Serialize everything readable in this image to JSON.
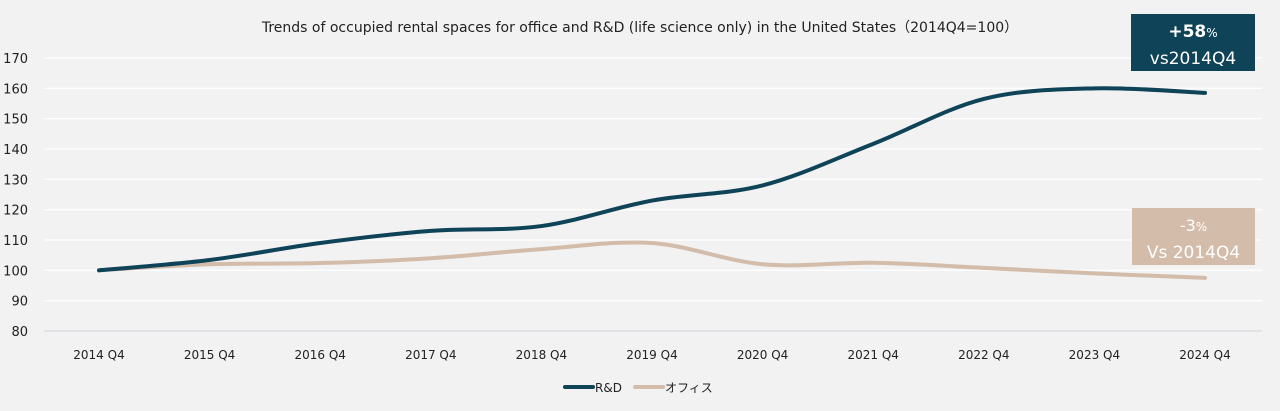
{
  "chart_data": {
    "type": "line",
    "title": "Trends of occupied rental spaces for office and R&D (life science only) in the United States（2014Q4=100）",
    "categories": [
      "2014 Q4",
      "2015 Q4",
      "2016 Q4",
      "2017 Q4",
      "2018 Q4",
      "2019 Q4",
      "2020 Q4",
      "2021 Q4",
      "2022 Q4",
      "2023 Q4",
      "2024 Q4"
    ],
    "ylim": [
      80,
      170
    ],
    "yticks": [
      80,
      90,
      100,
      110,
      120,
      130,
      140,
      150,
      160,
      170
    ],
    "grid": true,
    "legend_position": "bottom",
    "series": [
      {
        "name": "R&D",
        "color": "#0e4358",
        "values": [
          100,
          103.4,
          109,
          113,
          114.6,
          123,
          128,
          141.7,
          156.5,
          160,
          158.5
        ]
      },
      {
        "name": "オフィス",
        "color": "#d3bcaa",
        "values": [
          100,
          102,
          102.4,
          104,
          107,
          109,
          102,
          102.5,
          100.8,
          99,
          97.5
        ]
      }
    ],
    "annotations": [
      {
        "line1": "+58",
        "pct": "%",
        "line2": "vs2014Q4",
        "bg": "#0e4358",
        "color": "#ffffff"
      },
      {
        "line1": "-3",
        "pct": "%",
        "line2": "Vs 2014Q4",
        "bg": "#d3bcaa",
        "color": "#ffffff"
      }
    ]
  }
}
